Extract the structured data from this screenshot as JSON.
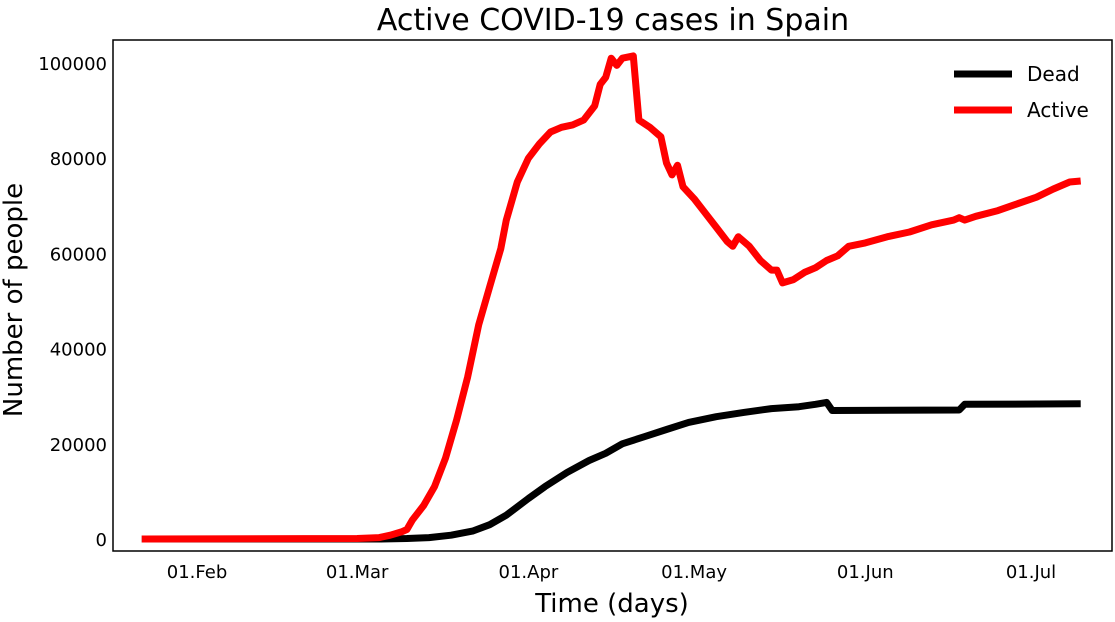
{
  "chart_data": {
    "type": "line",
    "title": "Active COVID-19 cases in Spain",
    "xlabel": "Time (days)",
    "ylabel": "Number of people",
    "x_ticks": [
      "01.Feb",
      "01.Mar",
      "01.Apr",
      "01.May",
      "01.Jun",
      "01.Jul"
    ],
    "y_ticks": [
      "0",
      "20000",
      "40000",
      "60000",
      "80000",
      "100000"
    ],
    "ylim": [
      -2500,
      105000
    ],
    "grid": false,
    "legend_position": "top-right",
    "series": [
      {
        "name": "Dead",
        "color": "#000000",
        "points": [
          [
            "2020-01-22",
            0
          ],
          [
            "2020-03-05",
            0
          ],
          [
            "2020-03-10",
            100
          ],
          [
            "2020-03-14",
            300
          ],
          [
            "2020-03-18",
            800
          ],
          [
            "2020-03-22",
            1700
          ],
          [
            "2020-03-25",
            3000
          ],
          [
            "2020-03-28",
            5000
          ],
          [
            "2020-04-01",
            8500
          ],
          [
            "2020-04-04",
            11000
          ],
          [
            "2020-04-08",
            14000
          ],
          [
            "2020-04-12",
            16500
          ],
          [
            "2020-04-15",
            18000
          ],
          [
            "2020-04-18",
            20000
          ],
          [
            "2020-04-22",
            21500
          ],
          [
            "2020-04-26",
            23000
          ],
          [
            "2020-04-30",
            24500
          ],
          [
            "2020-05-05",
            25700
          ],
          [
            "2020-05-10",
            26600
          ],
          [
            "2020-05-15",
            27400
          ],
          [
            "2020-05-20",
            27800
          ],
          [
            "2020-05-23",
            28300
          ],
          [
            "2020-05-25",
            28700
          ],
          [
            "2020-05-26",
            27000
          ],
          [
            "2020-06-18",
            27100
          ],
          [
            "2020-06-19",
            28300
          ],
          [
            "2020-07-10",
            28400
          ]
        ]
      },
      {
        "name": "Active",
        "color": "#ff0000",
        "points": [
          [
            "2020-01-22",
            0
          ],
          [
            "2020-03-01",
            100
          ],
          [
            "2020-03-05",
            300
          ],
          [
            "2020-03-07",
            800
          ],
          [
            "2020-03-09",
            1500
          ],
          [
            "2020-03-10",
            2000
          ],
          [
            "2020-03-11",
            4000
          ],
          [
            "2020-03-13",
            7000
          ],
          [
            "2020-03-15",
            11000
          ],
          [
            "2020-03-17",
            17000
          ],
          [
            "2020-03-19",
            25000
          ],
          [
            "2020-03-21",
            34000
          ],
          [
            "2020-03-23",
            45000
          ],
          [
            "2020-03-25",
            53000
          ],
          [
            "2020-03-27",
            61000
          ],
          [
            "2020-03-28",
            67000
          ],
          [
            "2020-03-30",
            75000
          ],
          [
            "2020-04-01",
            80000
          ],
          [
            "2020-04-03",
            83000
          ],
          [
            "2020-04-05",
            85500
          ],
          [
            "2020-04-07",
            86500
          ],
          [
            "2020-04-09",
            87000
          ],
          [
            "2020-04-11",
            88000
          ],
          [
            "2020-04-13",
            91000
          ],
          [
            "2020-04-14",
            95500
          ],
          [
            "2020-04-15",
            97000
          ],
          [
            "2020-04-16",
            101000
          ],
          [
            "2020-04-17",
            99500
          ],
          [
            "2020-04-18",
            101000
          ],
          [
            "2020-04-20",
            101500
          ],
          [
            "2020-04-21",
            88000
          ],
          [
            "2020-04-23",
            86500
          ],
          [
            "2020-04-25",
            84500
          ],
          [
            "2020-04-26",
            79000
          ],
          [
            "2020-04-27",
            76500
          ],
          [
            "2020-04-28",
            78500
          ],
          [
            "2020-04-29",
            74000
          ],
          [
            "2020-05-01",
            71500
          ],
          [
            "2020-05-03",
            68500
          ],
          [
            "2020-05-05",
            65500
          ],
          [
            "2020-05-07",
            62500
          ],
          [
            "2020-05-08",
            61500
          ],
          [
            "2020-05-09",
            63500
          ],
          [
            "2020-05-11",
            61500
          ],
          [
            "2020-05-13",
            58500
          ],
          [
            "2020-05-15",
            56500
          ],
          [
            "2020-05-16",
            56500
          ],
          [
            "2020-05-17",
            53800
          ],
          [
            "2020-05-19",
            54500
          ],
          [
            "2020-05-21",
            56000
          ],
          [
            "2020-05-23",
            57000
          ],
          [
            "2020-05-25",
            58500
          ],
          [
            "2020-05-27",
            59500
          ],
          [
            "2020-05-29",
            61500
          ],
          [
            "2020-06-01",
            62200
          ],
          [
            "2020-06-05",
            63500
          ],
          [
            "2020-06-09",
            64500
          ],
          [
            "2020-06-13",
            66000
          ],
          [
            "2020-06-17",
            67000
          ],
          [
            "2020-06-18",
            67500
          ],
          [
            "2020-06-19",
            67000
          ],
          [
            "2020-06-21",
            67800
          ],
          [
            "2020-06-25",
            69000
          ],
          [
            "2020-06-28",
            70200
          ],
          [
            "2020-07-02",
            71800
          ],
          [
            "2020-07-05",
            73500
          ],
          [
            "2020-07-08",
            75000
          ],
          [
            "2020-07-10",
            75200
          ]
        ]
      }
    ]
  }
}
